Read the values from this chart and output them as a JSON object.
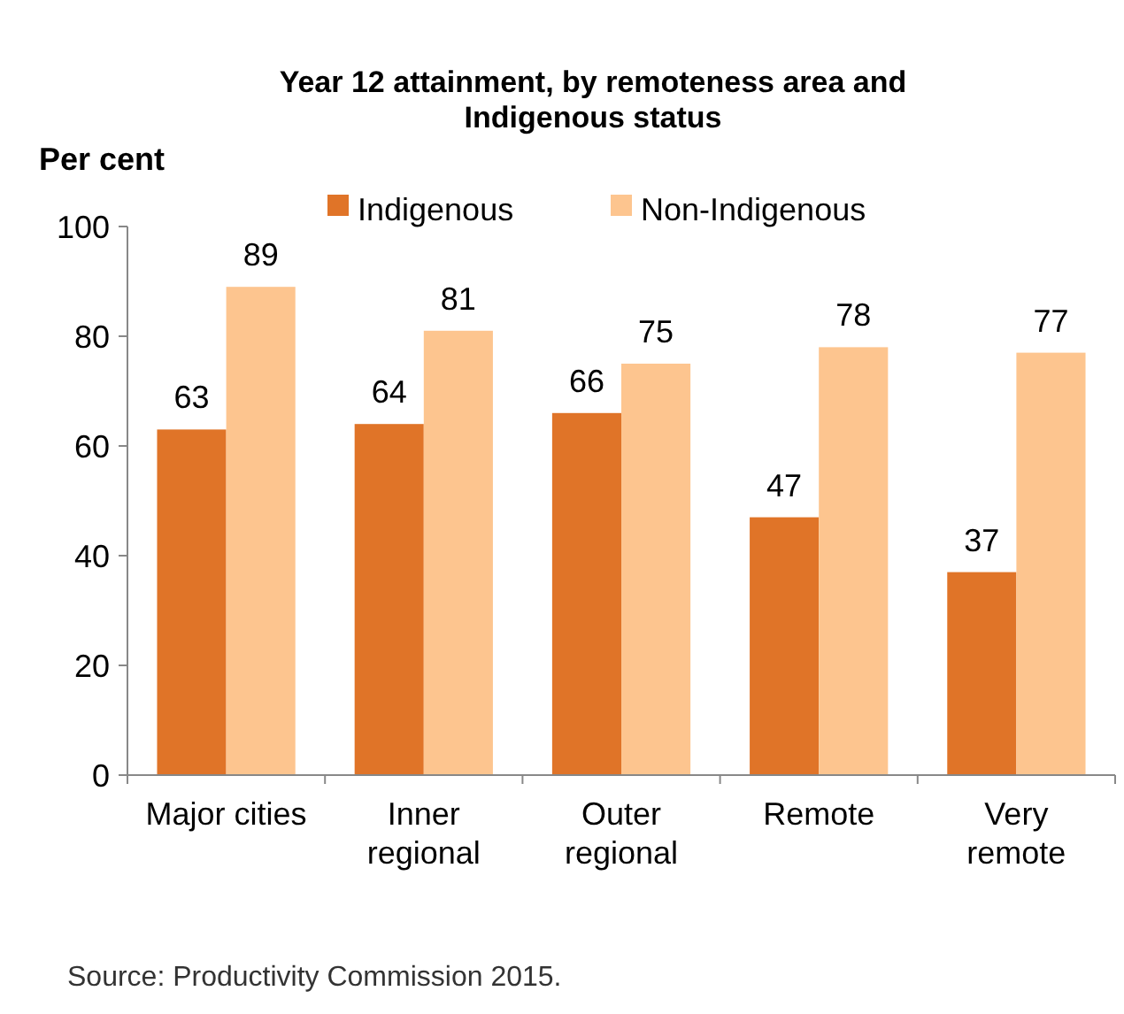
{
  "chart_data": {
    "type": "bar",
    "title": "Year 12 attainment, by remoteness area and Indigenous status",
    "ylabel": "Per cent",
    "categories": [
      "Major cities",
      "Inner\nregional",
      "Outer\nregional",
      "Remote",
      "Very\nremote"
    ],
    "series": [
      {
        "name": "Indigenous",
        "color": "#e07428",
        "values": [
          63,
          64,
          66,
          47,
          37
        ]
      },
      {
        "name": "Non-Indigenous",
        "color": "#fdc58f",
        "values": [
          89,
          81,
          75,
          78,
          77
        ]
      }
    ],
    "ylim": [
      0,
      100
    ],
    "yticks": [
      0,
      20,
      40,
      60,
      80,
      100
    ],
    "grid": false,
    "legend": "top",
    "data_labels": true,
    "annotations": [
      "Source: Productivity Commission 2015."
    ]
  }
}
